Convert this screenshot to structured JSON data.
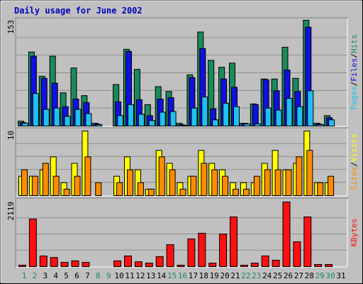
{
  "chart_data": [
    {
      "type": "bar",
      "title": "Daily usage for June 2002",
      "ylim": [
        0,
        153
      ],
      "yticks": [
        153
      ],
      "separator": "/",
      "series": [
        {
          "name": "Hits",
          "color": "#1b8a5a",
          "values": [
            7,
            107,
            72,
            101,
            48,
            84,
            44,
            4,
            0,
            60,
            111,
            82,
            31,
            57,
            50,
            4,
            74,
            136,
            95,
            85,
            91,
            4,
            32,
            68,
            68,
            114,
            69,
            153,
            4,
            15,
            0
          ]
        },
        {
          "name": "Files",
          "color": "#1010e0",
          "values": [
            5,
            101,
            69,
            62,
            28,
            39,
            34,
            3,
            0,
            35,
            108,
            38,
            15,
            39,
            41,
            2,
            70,
            112,
            25,
            68,
            56,
            4,
            31,
            67,
            51,
            81,
            50,
            143,
            3,
            12,
            0
          ]
        },
        {
          "name": "Pages",
          "color": "#20c0f0",
          "values": [
            4,
            47,
            24,
            26,
            14,
            24,
            18,
            2,
            0,
            15,
            31,
            17,
            8,
            20,
            21,
            1,
            26,
            42,
            9,
            33,
            28,
            3,
            3,
            26,
            23,
            40,
            28,
            51,
            2,
            9,
            0
          ]
        }
      ]
    },
    {
      "type": "bar",
      "ylim": [
        0,
        10
      ],
      "yticks": [
        10
      ],
      "separator": "/",
      "series": [
        {
          "name": "Visits",
          "color": "#ffff00",
          "values": [
            3,
            3,
            4,
            6,
            2,
            5,
            10,
            0,
            0,
            3,
            6,
            4,
            1,
            7,
            5,
            2,
            3,
            7,
            5,
            4,
            2,
            2,
            2,
            5,
            7,
            4,
            5,
            10,
            2,
            2,
            0
          ]
        },
        {
          "name": "Sites",
          "color": "#ff8c00",
          "values": [
            4,
            3,
            5,
            3,
            1,
            3,
            6,
            2,
            0,
            2,
            4,
            2,
            1,
            6,
            4,
            1,
            3,
            5,
            4,
            3,
            1,
            1,
            3,
            4,
            4,
            4,
            6,
            7,
            2,
            3,
            0
          ]
        }
      ]
    },
    {
      "type": "bar",
      "ylim": [
        0,
        2119
      ],
      "yticks": [
        2119
      ],
      "categories": [
        "1",
        "2",
        "3",
        "4",
        "5",
        "6",
        "7",
        "8",
        "9",
        "10",
        "11",
        "12",
        "13",
        "14",
        "15",
        "16",
        "17",
        "18",
        "19",
        "20",
        "21",
        "22",
        "23",
        "24",
        "25",
        "26",
        "27",
        "28",
        "29",
        "30",
        "31"
      ],
      "category_colors": [
        "#1b8a5a",
        "#1b8a5a",
        "#000000",
        "#000000",
        "#000000",
        "#000000",
        "#000000",
        "#1b8a5a",
        "#1b8a5a",
        "#000000",
        "#000000",
        "#000000",
        "#000000",
        "#000000",
        "#1b8a5a",
        "#1b8a5a",
        "#000000",
        "#000000",
        "#000000",
        "#000000",
        "#000000",
        "#1b8a5a",
        "#1b8a5a",
        "#000000",
        "#000000",
        "#000000",
        "#000000",
        "#000000",
        "#1b8a5a",
        "#1b8a5a",
        "#000000"
      ],
      "series": [
        {
          "name": "KBytes",
          "color": "#ff1010",
          "values": [
            47,
            1561,
            350,
            300,
            140,
            190,
            140,
            0,
            0,
            190,
            350,
            160,
            115,
            330,
            720,
            47,
            910,
            1095,
            115,
            1070,
            1630,
            47,
            115,
            350,
            210,
            2119,
            815,
            1630,
            70,
            70,
            0
          ]
        }
      ]
    }
  ]
}
